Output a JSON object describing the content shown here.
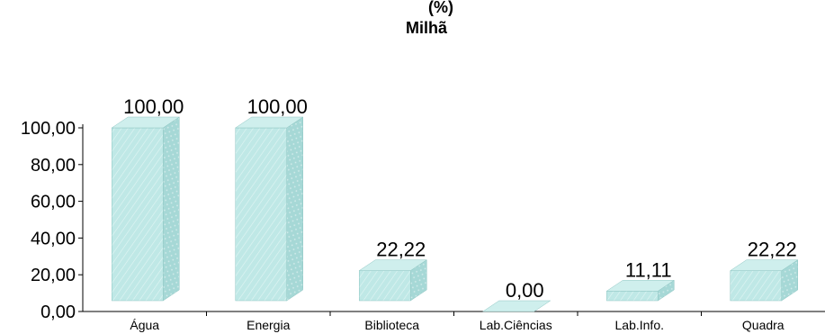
{
  "chart_data": {
    "type": "bar",
    "title_line1": "(%)",
    "title_line2": "Milhã",
    "categories": [
      "Água",
      "Energia",
      "Biblioteca",
      "Lab.Ciências",
      "Lab.Info.",
      "Quadra"
    ],
    "values": [
      100,
      100,
      22.22,
      0,
      11.11,
      22.22
    ],
    "value_labels": [
      "100,00",
      "100,00",
      "22,22",
      "0,00",
      "11,11",
      "22,22"
    ],
    "y_ticks": [
      "0,00",
      "20,00",
      "40,00",
      "60,00",
      "80,00",
      "100,00"
    ],
    "ylim": [
      0,
      100
    ],
    "grid": false,
    "bar_color": "#bfe8e6",
    "bar_side_color": "#a6d8d6",
    "bar_top_color": "#cfefed"
  }
}
